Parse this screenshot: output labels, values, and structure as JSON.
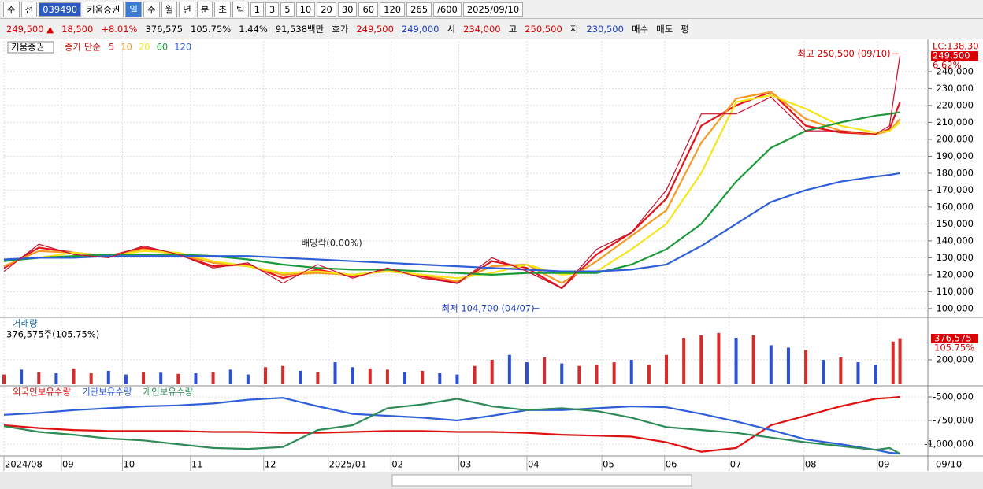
{
  "toolbar": {
    "items": [
      "주",
      "전",
      "039490",
      "키움증권",
      "일",
      "주",
      "월",
      "년",
      "분",
      "초",
      "틱",
      "1",
      "3",
      "5",
      "10",
      "20",
      "30",
      "60",
      "120",
      "265",
      "/600",
      "2025/09/10"
    ]
  },
  "infobar": {
    "items": [
      "249,500 ▲",
      "18,500",
      "+8.01%",
      "376,575",
      "105.75%",
      "1.44%",
      "91,538백만",
      "호가",
      "249,500",
      "249,000",
      "시",
      "234,000",
      "고",
      "250,500",
      "저",
      "230,500",
      "매수",
      "매도",
      "평"
    ]
  },
  "x_axis": {
    "xlim": [
      0,
      265
    ],
    "labels": [
      "2024/08",
      "09",
      "10",
      "11",
      "12",
      "2025/01",
      "02",
      "03",
      "04",
      "05",
      "06",
      "07",
      "08",
      "09"
    ],
    "positions": [
      0,
      16.5,
      34,
      53.5,
      74.5,
      93,
      111,
      130.5,
      150,
      171.5,
      189.5,
      208,
      229.5,
      250.5
    ],
    "end_label": "09/10"
  },
  "price_panel": {
    "name": "키움증권",
    "legend_prefix": "종가 단순",
    "ylim": [
      95300,
      258100
    ],
    "yticks": [
      {
        "value": 100000,
        "label": "100,000"
      },
      {
        "value": 110000,
        "label": "110,000"
      },
      {
        "value": 120000,
        "label": "120,000"
      },
      {
        "value": 130000,
        "label": "130,000"
      },
      {
        "value": 140000,
        "label": "140,000"
      },
      {
        "value": 150000,
        "label": "150,000"
      },
      {
        "value": 160000,
        "label": "160,000"
      },
      {
        "value": 170000,
        "label": "170,000"
      },
      {
        "value": 180000,
        "label": "180,000"
      },
      {
        "value": 190000,
        "label": "190,000"
      },
      {
        "value": 200000,
        "label": "200,000"
      },
      {
        "value": 210000,
        "label": "210,000"
      },
      {
        "value": 220000,
        "label": "220,000"
      },
      {
        "value": 230000,
        "label": "230,000"
      },
      {
        "value": 240000,
        "label": "240,000"
      }
    ],
    "x": [
      0,
      10,
      20,
      30,
      40,
      50,
      60,
      70,
      80,
      90,
      100,
      110,
      120,
      130,
      140,
      150,
      160,
      170,
      180,
      190,
      200,
      210,
      220,
      230,
      240,
      250,
      254,
      257
    ],
    "close": {
      "color": "#c8102e",
      "values": [
        122000,
        138000,
        132000,
        130000,
        137000,
        132000,
        124000,
        127000,
        115000,
        126000,
        118000,
        124000,
        118000,
        115000,
        130000,
        122000,
        112000,
        135000,
        145000,
        170000,
        215000,
        215000,
        225000,
        205000,
        205000,
        203000,
        208000,
        249500
      ]
    },
    "series": [
      {
        "name": "5",
        "color": "#e3161c",
        "values": [
          124000,
          136000,
          133000,
          131000,
          136000,
          132000,
          125000,
          126000,
          118000,
          123000,
          119000,
          123000,
          119000,
          115000,
          128000,
          124000,
          112000,
          132000,
          145000,
          165000,
          208000,
          220000,
          228000,
          208000,
          204000,
          203000,
          206000,
          222000
        ]
      },
      {
        "name": "10",
        "color": "#f59a23",
        "values": [
          125000,
          134000,
          133000,
          131000,
          135000,
          132000,
          127000,
          125000,
          120000,
          121000,
          120000,
          122000,
          120000,
          116000,
          125000,
          126000,
          115000,
          128000,
          143000,
          158000,
          198000,
          224000,
          228000,
          212000,
          205000,
          203000,
          205000,
          212000
        ]
      },
      {
        "name": "20",
        "color": "#f5e61c",
        "values": [
          128000,
          130000,
          133000,
          131000,
          134000,
          133000,
          128000,
          125000,
          121000,
          122000,
          120000,
          122000,
          120000,
          118000,
          121000,
          126000,
          120000,
          122000,
          135000,
          150000,
          180000,
          222000,
          226000,
          218000,
          208000,
          204000,
          205000,
          210000
        ]
      },
      {
        "name": "60",
        "color": "#1c9a3a",
        "values": [
          128000,
          130000,
          131000,
          132000,
          132000,
          132000,
          131000,
          129000,
          126000,
          124000,
          123000,
          123000,
          122000,
          121000,
          120000,
          121000,
          121000,
          121000,
          126000,
          135000,
          150000,
          175000,
          195000,
          205000,
          210000,
          214000,
          215000,
          216000
        ]
      },
      {
        "name": "120",
        "color": "#2f5fd8",
        "values": [
          129000,
          130000,
          130000,
          131000,
          131000,
          131000,
          131000,
          131000,
          130000,
          129000,
          128000,
          127000,
          126000,
          125000,
          124000,
          123000,
          122000,
          122000,
          123000,
          126000,
          137000,
          150000,
          163000,
          170000,
          175000,
          178000,
          179000,
          180000
        ]
      }
    ],
    "annotations": [
      {
        "text": "최고 250,500 (09/10)",
        "x": 257,
        "y": 250500
      },
      {
        "text": "최저 104,700 (04/07)",
        "x": 154,
        "y": 104700
      },
      {
        "text": "배당락(0.00%)",
        "x": 88,
        "y": 131000
      }
    ],
    "right_labels": [
      "LC:138,30",
      "249,500",
      "6.62%"
    ]
  },
  "volume_panel": {
    "name": "거래량",
    "info": "376,575주(105.75%)",
    "ylim": [
      0,
      535000
    ],
    "yticks": [
      {
        "value": 200000,
        "label": "200,000"
      }
    ],
    "right_labels": [
      "376,575",
      "105.75%"
    ],
    "x": [
      0,
      5,
      10,
      15,
      20,
      25,
      30,
      35,
      40,
      45,
      50,
      55,
      60,
      65,
      70,
      75,
      80,
      85,
      90,
      95,
      100,
      105,
      110,
      115,
      120,
      125,
      130,
      135,
      140,
      145,
      150,
      155,
      160,
      165,
      170,
      175,
      180,
      185,
      190,
      195,
      200,
      205,
      210,
      215,
      220,
      225,
      230,
      235,
      240,
      245,
      250,
      255,
      257
    ],
    "values": [
      80000,
      120000,
      100000,
      90000,
      130000,
      90000,
      110000,
      80000,
      100000,
      95000,
      85000,
      90000,
      100000,
      120000,
      80000,
      140000,
      150000,
      110000,
      100000,
      180000,
      140000,
      130000,
      120000,
      100000,
      110000,
      90000,
      80000,
      150000,
      200000,
      240000,
      180000,
      220000,
      170000,
      150000,
      160000,
      180000,
      200000,
      160000,
      240000,
      380000,
      400000,
      420000,
      380000,
      400000,
      320000,
      300000,
      280000,
      200000,
      220000,
      180000,
      160000,
      350000,
      376575
    ],
    "colors": [
      "#d62b2b",
      "#2d4fd1",
      "#d62b2b",
      "#2d4fd1",
      "#d62b2b",
      "#d62b2b",
      "#2d4fd1",
      "#2d4fd1",
      "#d62b2b",
      "#2d4fd1",
      "#d62b2b",
      "#2d4fd1",
      "#d62b2b",
      "#2d4fd1",
      "#2d4fd1",
      "#d62b2b",
      "#d62b2b",
      "#2d4fd1",
      "#d62b2b",
      "#2d4fd1",
      "#2d4fd1",
      "#d62b2b",
      "#d62b2b",
      "#2d4fd1",
      "#d62b2b",
      "#2d4fd1",
      "#2d4fd1",
      "#d62b2b",
      "#d62b2b",
      "#2d4fd1",
      "#2d4fd1",
      "#d62b2b",
      "#2d4fd1",
      "#d62b2b",
      "#d62b2b",
      "#d62b2b",
      "#2d4fd1",
      "#d62b2b",
      "#d62b2b",
      "#d62b2b",
      "#d62b2b",
      "#d62b2b",
      "#2d4fd1",
      "#d62b2b",
      "#2d4fd1",
      "#2d4fd1",
      "#d62b2b",
      "#2d4fd1",
      "#d62b2b",
      "#2d4fd1",
      "#2d4fd1",
      "#d62b2b",
      "#d62b2b"
    ]
  },
  "investor_panel": {
    "ylim": [
      -1116000,
      -400000
    ],
    "yticks": [
      {
        "value": -500000,
        "label": "-500,000"
      },
      {
        "value": -750000,
        "label": "-750,000"
      },
      {
        "value": -1000000,
        "label": "-1,000,000"
      }
    ],
    "x": [
      0,
      10,
      20,
      30,
      40,
      50,
      60,
      70,
      80,
      90,
      100,
      110,
      120,
      130,
      140,
      150,
      160,
      170,
      180,
      190,
      200,
      210,
      220,
      230,
      240,
      250,
      254,
      257
    ],
    "series": [
      {
        "name": "외국인보유수량",
        "color": "#e01010",
        "values": [
          -800000,
          -830000,
          -850000,
          -860000,
          -860000,
          -860000,
          -870000,
          -870000,
          -880000,
          -880000,
          -870000,
          -860000,
          -860000,
          -870000,
          -870000,
          -880000,
          -900000,
          -910000,
          -920000,
          -980000,
          -1080000,
          -1040000,
          -800000,
          -700000,
          -600000,
          -520000,
          -510000,
          -500000
        ]
      },
      {
        "name": "기관보유수량",
        "color": "#2f5fd8",
        "values": [
          -690000,
          -670000,
          -640000,
          -620000,
          -600000,
          -590000,
          -570000,
          -530000,
          -510000,
          -600000,
          -680000,
          -700000,
          -720000,
          -750000,
          -700000,
          -640000,
          -640000,
          -620000,
          -600000,
          -610000,
          -680000,
          -760000,
          -850000,
          -950000,
          -1000000,
          -1060000,
          -1090000,
          -1100000
        ]
      },
      {
        "name": "개인보유수량",
        "color": "#2e8b57",
        "values": [
          -810000,
          -870000,
          -900000,
          -940000,
          -960000,
          -1000000,
          -1040000,
          -1050000,
          -1030000,
          -850000,
          -800000,
          -620000,
          -580000,
          -520000,
          -600000,
          -640000,
          -620000,
          -650000,
          -720000,
          -820000,
          -850000,
          -880000,
          -930000,
          -980000,
          -1020000,
          -1060000,
          -1040000,
          -1100000
        ]
      }
    ]
  }
}
